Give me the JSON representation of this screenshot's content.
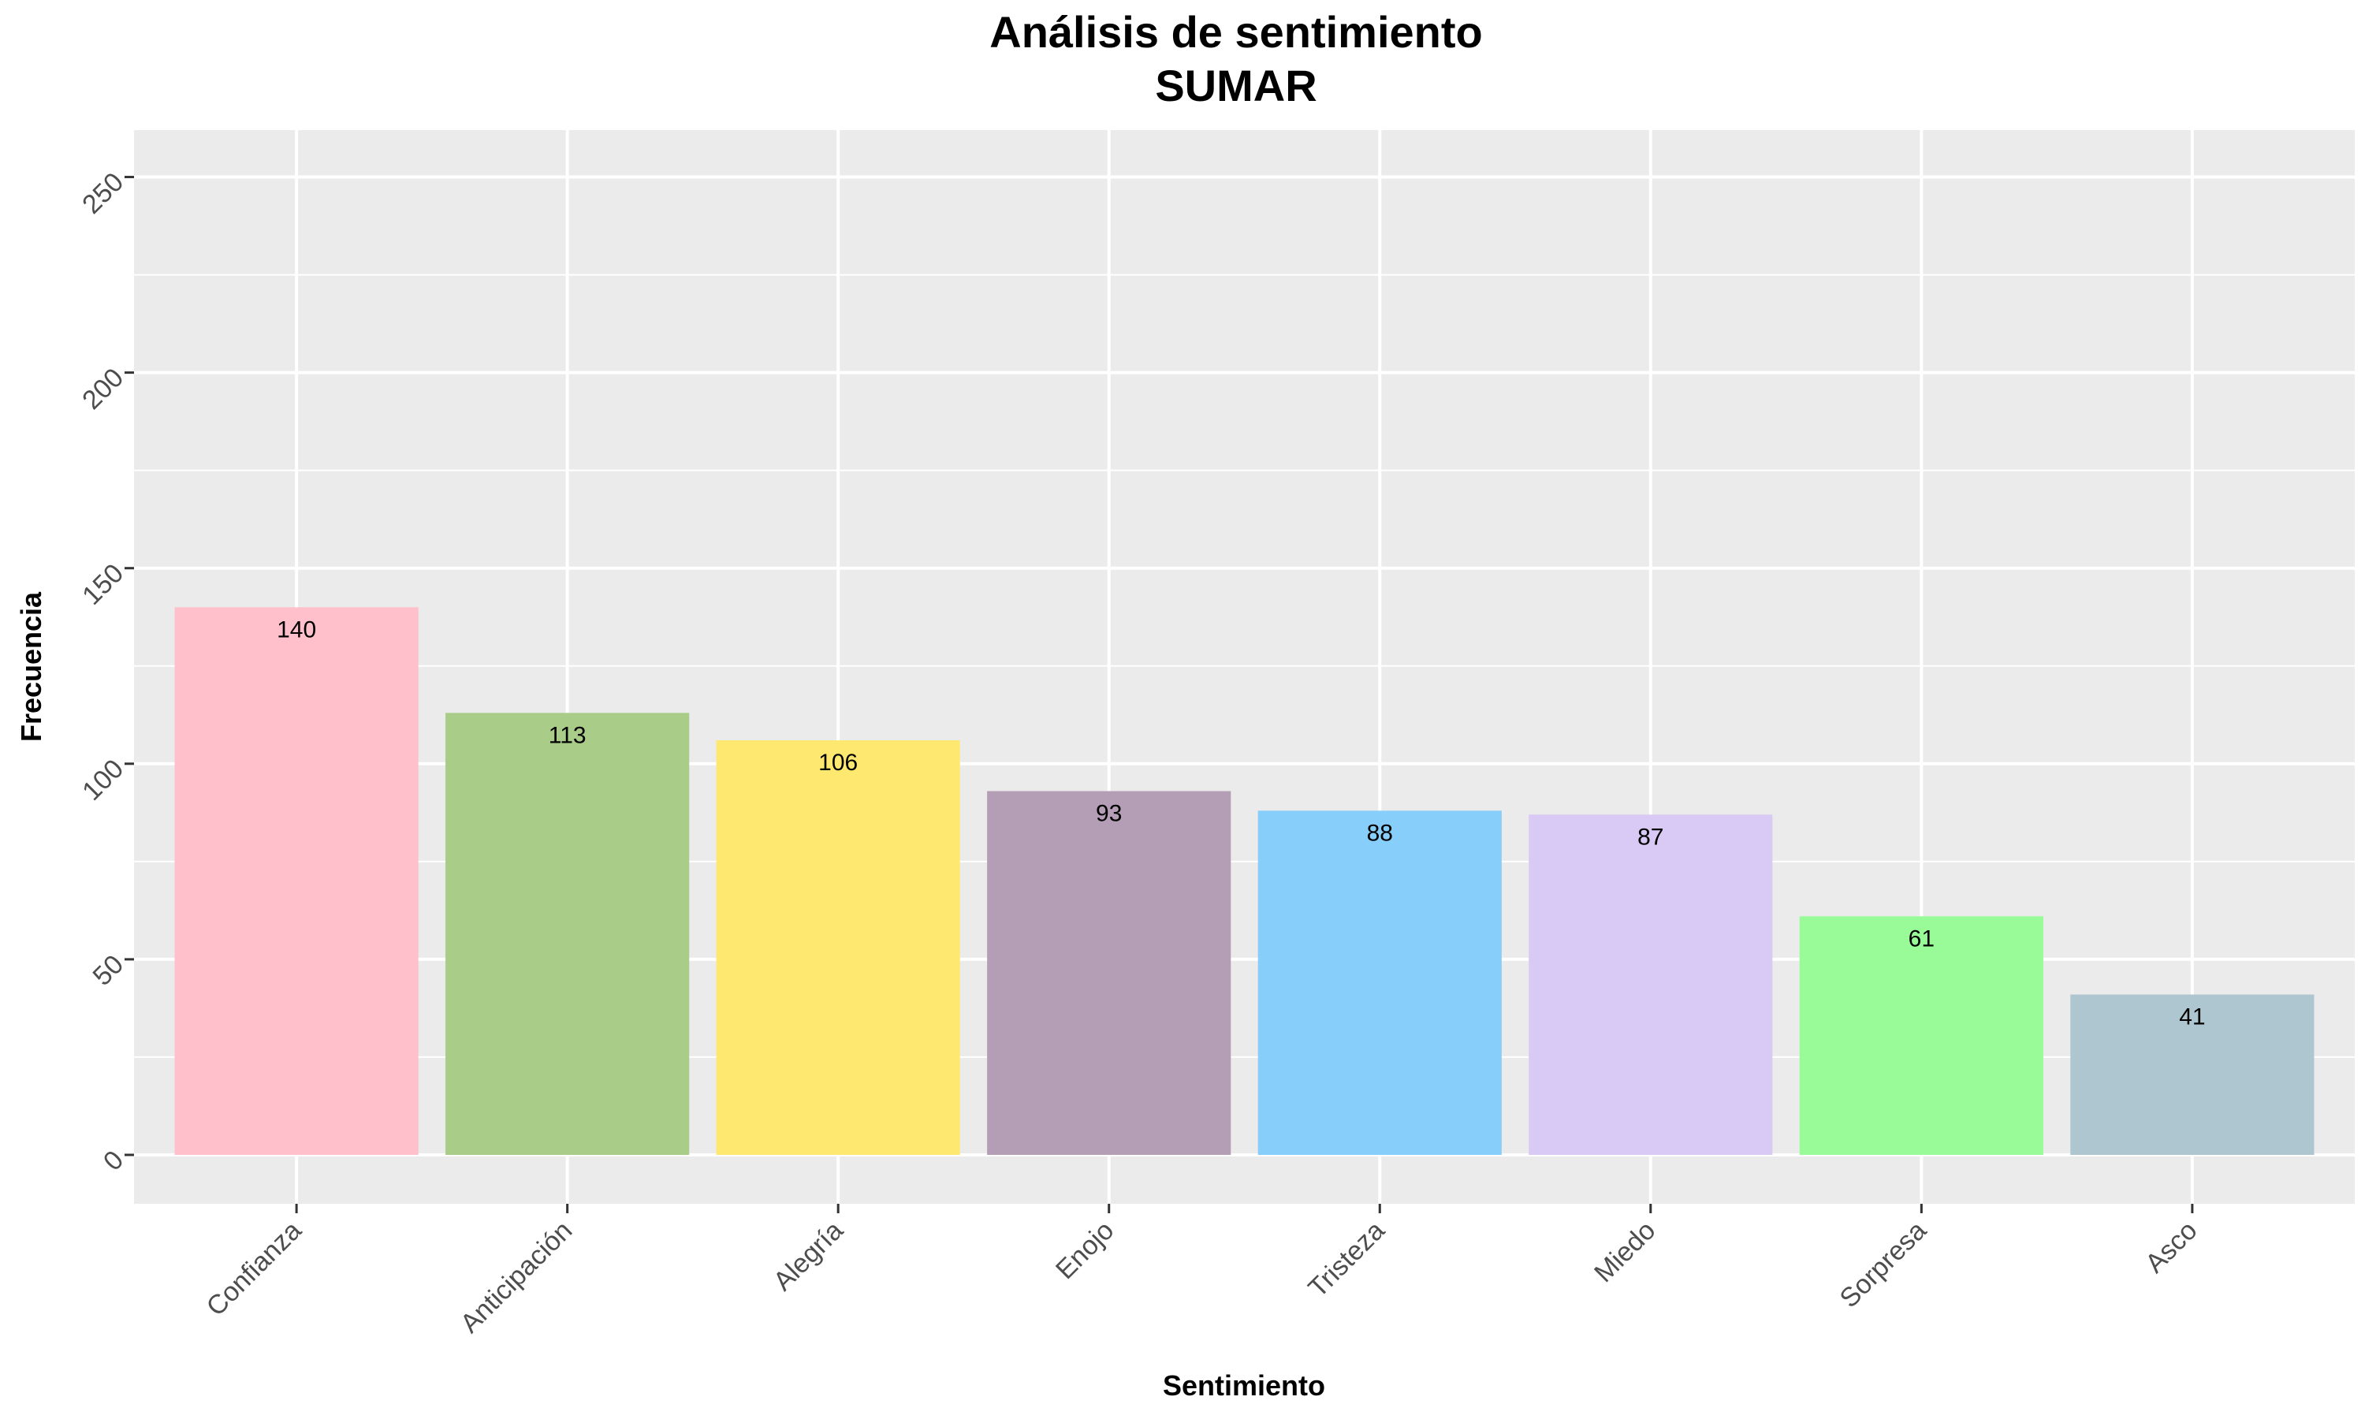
{
  "chart_data": {
    "type": "bar",
    "title": "Análisis de sentimiento",
    "subtitle": "SUMAR",
    "xlabel": "Sentimiento",
    "ylabel": "Frecuencia",
    "categories": [
      "Confianza",
      "Anticipación",
      "Alegría",
      "Enojo",
      "Tristeza",
      "Miedo",
      "Sorpresa",
      "Asco"
    ],
    "values": [
      140,
      113,
      106,
      93,
      88,
      87,
      61,
      41
    ],
    "data_labels": [
      "140",
      "113",
      "106",
      "93",
      "88",
      "87",
      "61",
      "41"
    ],
    "colors": [
      "#FFC0CB",
      "#A9CC89",
      "#FFE870",
      "#B49EB5",
      "#87CEFA",
      "#D9C9F5",
      "#98FB98",
      "#AEC6CF"
    ],
    "ylim": [
      -12.5,
      262
    ],
    "y_ticks": [
      0,
      50,
      100,
      150,
      200,
      250
    ],
    "y_tick_labels": [
      "0",
      "50",
      "100",
      "150",
      "200",
      "250"
    ],
    "grid": true,
    "legend": "none",
    "panel_background": "#EBEBEB",
    "grid_color": "#FFFFFF"
  }
}
